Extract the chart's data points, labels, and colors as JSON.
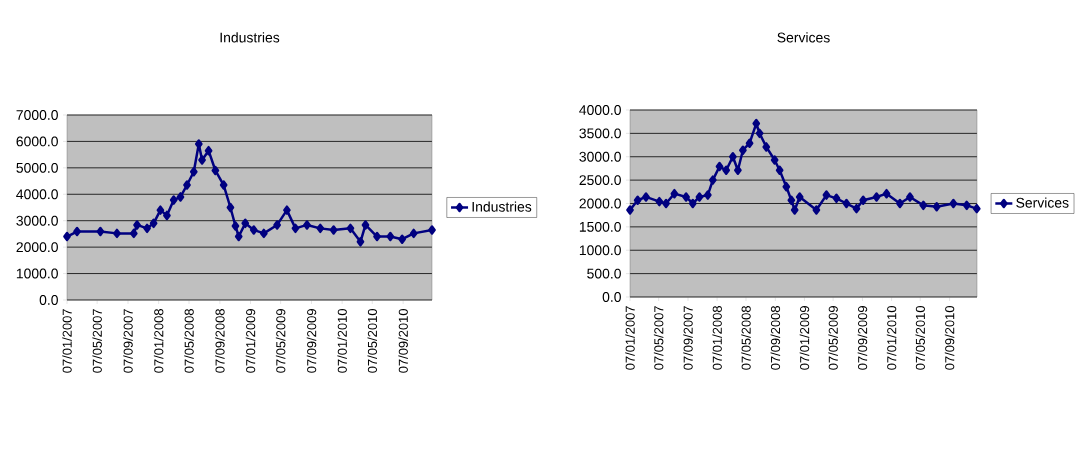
{
  "chart_data": [
    {
      "type": "line",
      "title": "Industries",
      "marker": "diamond",
      "grid": "y",
      "legend": "right",
      "xlim": [
        "2007-01-07",
        "2010-12-31"
      ],
      "xticks": [
        {
          "value": "2007-01-07",
          "label": "07/01/2007"
        },
        {
          "value": "2007-05-07",
          "label": "07/05/2007"
        },
        {
          "value": "2007-09-07",
          "label": "07/09/2007"
        },
        {
          "value": "2008-01-07",
          "label": "07/01/2008"
        },
        {
          "value": "2008-05-07",
          "label": "07/05/2008"
        },
        {
          "value": "2008-09-07",
          "label": "07/09/2008"
        },
        {
          "value": "2009-01-07",
          "label": "07/01/2009"
        },
        {
          "value": "2009-05-07",
          "label": "07/05/2009"
        },
        {
          "value": "2009-09-07",
          "label": "07/09/2009"
        },
        {
          "value": "2010-01-07",
          "label": "07/01/2010"
        },
        {
          "value": "2010-05-07",
          "label": "07/05/2010"
        },
        {
          "value": "2010-09-07",
          "label": "07/09/2010"
        }
      ],
      "ylim": [
        0,
        7000
      ],
      "yticks": [
        {
          "value": 0,
          "label": "0.0"
        },
        {
          "value": 1000,
          "label": "1000.0"
        },
        {
          "value": 2000,
          "label": "2000.0"
        },
        {
          "value": 3000,
          "label": "3000.0"
        },
        {
          "value": 4000,
          "label": "4000.0"
        },
        {
          "value": 5000,
          "label": "5000.0"
        },
        {
          "value": 6000,
          "label": "6000.0"
        },
        {
          "value": 7000,
          "label": "7000.0"
        }
      ],
      "series": [
        {
          "name": "Industries",
          "color": "#000080",
          "x": [
            "2007-01-07",
            "2007-02-16",
            "2007-05-20",
            "2007-07-25",
            "2007-09-30",
            "2007-10-13",
            "2007-11-22",
            "2007-12-18",
            "2008-01-14",
            "2008-02-09",
            "2008-03-07",
            "2008-04-03",
            "2008-04-29",
            "2008-05-26",
            "2008-06-15",
            "2008-06-28",
            "2008-07-24",
            "2008-08-20",
            "2008-09-22",
            "2008-10-19",
            "2008-11-08",
            "2008-11-21",
            "2008-12-17",
            "2009-01-20",
            "2009-03-01",
            "2009-04-23",
            "2009-06-01",
            "2009-07-05",
            "2009-08-20",
            "2009-10-12",
            "2009-12-04",
            "2010-02-09",
            "2010-03-21",
            "2010-04-10",
            "2010-05-26",
            "2010-07-18",
            "2010-09-03",
            "2010-10-19",
            "2010-12-31"
          ],
          "values": [
            2400,
            2590,
            2590,
            2520,
            2520,
            2840,
            2710,
            2900,
            3400,
            3200,
            3780,
            3900,
            4350,
            4850,
            5900,
            5300,
            5650,
            4900,
            4350,
            3500,
            2800,
            2400,
            2900,
            2650,
            2520,
            2840,
            3400,
            2710,
            2840,
            2710,
            2650,
            2710,
            2200,
            2840,
            2400,
            2400,
            2300,
            2520,
            2650
          ]
        }
      ]
    },
    {
      "type": "line",
      "title": "Services",
      "marker": "diamond",
      "grid": "y",
      "legend": "right",
      "xlim": [
        "2007-01-07",
        "2010-12-31"
      ],
      "xticks": [
        {
          "value": "2007-01-07",
          "label": "07/01/2007"
        },
        {
          "value": "2007-05-07",
          "label": "07/05/2007"
        },
        {
          "value": "2007-09-07",
          "label": "07/09/2007"
        },
        {
          "value": "2008-01-07",
          "label": "07/01/2008"
        },
        {
          "value": "2008-05-07",
          "label": "07/05/2008"
        },
        {
          "value": "2008-09-07",
          "label": "07/09/2008"
        },
        {
          "value": "2009-01-07",
          "label": "07/01/2009"
        },
        {
          "value": "2009-05-07",
          "label": "07/05/2009"
        },
        {
          "value": "2009-09-07",
          "label": "07/09/2009"
        },
        {
          "value": "2010-01-07",
          "label": "07/01/2010"
        },
        {
          "value": "2010-05-07",
          "label": "07/05/2010"
        },
        {
          "value": "2010-09-07",
          "label": "07/09/2010"
        }
      ],
      "ylim": [
        0,
        4000
      ],
      "yticks": [
        {
          "value": 0,
          "label": "0.0"
        },
        {
          "value": 500,
          "label": "500.0"
        },
        {
          "value": 1000,
          "label": "1000.0"
        },
        {
          "value": 1500,
          "label": "1500.0"
        },
        {
          "value": 2000,
          "label": "2000.0"
        },
        {
          "value": 2500,
          "label": "2500.0"
        },
        {
          "value": 3000,
          "label": "3000.0"
        },
        {
          "value": 3500,
          "label": "3500.0"
        },
        {
          "value": 4000,
          "label": "4000.0"
        }
      ],
      "series": [
        {
          "name": "Services",
          "color": "#000080",
          "x": [
            "2007-01-07",
            "2007-02-08",
            "2007-03-15",
            "2007-05-10",
            "2007-06-07",
            "2007-07-12",
            "2007-08-30",
            "2007-09-27",
            "2007-10-25",
            "2007-11-29",
            "2007-12-20",
            "2008-01-17",
            "2008-02-14",
            "2008-03-13",
            "2008-04-03",
            "2008-04-24",
            "2008-05-22",
            "2008-06-19",
            "2008-07-03",
            "2008-07-31",
            "2008-09-04",
            "2008-09-25",
            "2008-10-23",
            "2008-11-13",
            "2008-11-27",
            "2008-12-18",
            "2009-02-26",
            "2009-04-09",
            "2009-05-21",
            "2009-07-02",
            "2009-08-13",
            "2009-09-10",
            "2009-11-05",
            "2009-12-17",
            "2010-02-11",
            "2010-03-25",
            "2010-05-20",
            "2010-07-15",
            "2010-09-23",
            "2010-11-18",
            "2010-12-30"
          ],
          "values": [
            1860,
            2070,
            2140,
            2040,
            2000,
            2210,
            2140,
            2000,
            2140,
            2180,
            2500,
            2790,
            2710,
            3000,
            2710,
            3140,
            3290,
            3710,
            3500,
            3210,
            2930,
            2710,
            2360,
            2070,
            1860,
            2140,
            1860,
            2180,
            2110,
            2000,
            1890,
            2070,
            2140,
            2210,
            2000,
            2140,
            1960,
            1930,
            2000,
            1960,
            1890
          ]
        }
      ]
    }
  ]
}
